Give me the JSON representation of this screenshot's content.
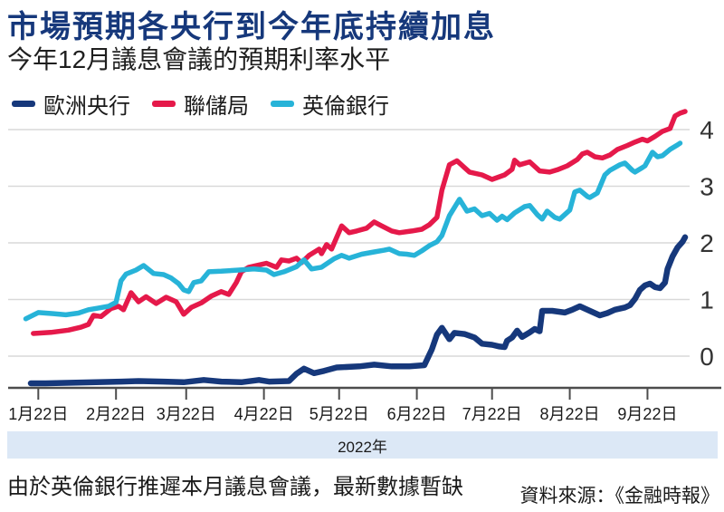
{
  "header": {
    "title": "市場預期各央行到今年底持續加息",
    "subtitle": "今年12月議息會議的預期利率水平"
  },
  "footer": {
    "note": "由於英倫銀行推遲本月議息會議，最新數據暫缺",
    "source": "資料來源：《金融時報》"
  },
  "chart_data": {
    "type": "line",
    "title": "市場預期各央行到今年底持續加息",
    "subtitle": "今年12月議息會議的預期利率水平",
    "grid": true,
    "legend_position": "top-left",
    "x_axis": {
      "unit": "day_of_year_2022",
      "tick_labels": [
        "1月22日",
        "2月22日",
        "3月22日",
        "4月22日",
        "5月22日",
        "6月22日",
        "7月22日",
        "8月22日",
        "9月22日"
      ],
      "tick_days": [
        22,
        53,
        81,
        112,
        142,
        173,
        203,
        234,
        265
      ],
      "band_label": "2022年"
    },
    "y_axis": {
      "side": "right",
      "ticks": [
        0,
        1,
        2,
        3,
        4
      ],
      "range": [
        -0.6,
        4.45
      ],
      "label": "%"
    },
    "series": [
      {
        "id": "ecb",
        "name": "歐洲央行",
        "color": "#16387b",
        "points": [
          [
            19,
            -0.48
          ],
          [
            25,
            -0.48
          ],
          [
            35,
            -0.47
          ],
          [
            45,
            -0.46
          ],
          [
            55,
            -0.45
          ],
          [
            62,
            -0.44
          ],
          [
            72,
            -0.45
          ],
          [
            80,
            -0.46
          ],
          [
            88,
            -0.42
          ],
          [
            95,
            -0.45
          ],
          [
            103,
            -0.46
          ],
          [
            110,
            -0.42
          ],
          [
            114,
            -0.45
          ],
          [
            122,
            -0.44
          ],
          [
            125,
            -0.31
          ],
          [
            128,
            -0.22
          ],
          [
            132,
            -0.3
          ],
          [
            136,
            -0.26
          ],
          [
            141,
            -0.2
          ],
          [
            150,
            -0.18
          ],
          [
            156,
            -0.15
          ],
          [
            163,
            -0.18
          ],
          [
            170,
            -0.18
          ],
          [
            176,
            -0.16
          ],
          [
            179,
            0.12
          ],
          [
            181,
            0.38
          ],
          [
            183,
            0.5
          ],
          [
            186,
            0.3
          ],
          [
            188,
            0.41
          ],
          [
            192,
            0.39
          ],
          [
            196,
            0.33
          ],
          [
            199,
            0.22
          ],
          [
            203,
            0.2
          ],
          [
            206,
            0.17
          ],
          [
            208,
            0.16
          ],
          [
            209,
            0.27
          ],
          [
            211,
            0.33
          ],
          [
            213,
            0.45
          ],
          [
            215,
            0.34
          ],
          [
            218,
            0.42
          ],
          [
            220,
            0.48
          ],
          [
            222,
            0.44
          ],
          [
            223,
            0.8
          ],
          [
            227,
            0.8
          ],
          [
            232,
            0.77
          ],
          [
            235,
            0.82
          ],
          [
            238,
            0.88
          ],
          [
            242,
            0.8
          ],
          [
            246,
            0.72
          ],
          [
            249,
            0.76
          ],
          [
            252,
            0.82
          ],
          [
            256,
            0.86
          ],
          [
            258,
            0.9
          ],
          [
            260,
            1.01
          ],
          [
            262,
            1.17
          ],
          [
            264,
            1.25
          ],
          [
            266,
            1.28
          ],
          [
            268,
            1.22
          ],
          [
            270,
            1.2
          ],
          [
            272,
            1.3
          ],
          [
            273,
            1.54
          ],
          [
            275,
            1.76
          ],
          [
            277,
            1.92
          ],
          [
            279,
            2.02
          ],
          [
            280,
            2.1
          ]
        ]
      },
      {
        "id": "fed",
        "name": "聯儲局",
        "color": "#e5194a",
        "points": [
          [
            20,
            0.4
          ],
          [
            27,
            0.42
          ],
          [
            34,
            0.46
          ],
          [
            39,
            0.51
          ],
          [
            42,
            0.56
          ],
          [
            44,
            0.72
          ],
          [
            47,
            0.7
          ],
          [
            51,
            0.84
          ],
          [
            54,
            0.88
          ],
          [
            56,
            0.82
          ],
          [
            59,
            1.12
          ],
          [
            62,
            0.96
          ],
          [
            65,
            1.05
          ],
          [
            69,
            0.93
          ],
          [
            73,
            1.04
          ],
          [
            77,
            0.96
          ],
          [
            80,
            0.74
          ],
          [
            83,
            0.86
          ],
          [
            87,
            0.94
          ],
          [
            91,
            1.06
          ],
          [
            95,
            1.14
          ],
          [
            98,
            1.09
          ],
          [
            101,
            1.3
          ],
          [
            103,
            1.49
          ],
          [
            106,
            1.57
          ],
          [
            110,
            1.61
          ],
          [
            113,
            1.64
          ],
          [
            117,
            1.57
          ],
          [
            119,
            1.7
          ],
          [
            122,
            1.68
          ],
          [
            125,
            1.73
          ],
          [
            127,
            1.65
          ],
          [
            130,
            1.78
          ],
          [
            134,
            1.89
          ],
          [
            135,
            1.81
          ],
          [
            137,
            1.97
          ],
          [
            139,
            1.89
          ],
          [
            143,
            2.3
          ],
          [
            146,
            2.18
          ],
          [
            149,
            2.21
          ],
          [
            153,
            2.26
          ],
          [
            156,
            2.37
          ],
          [
            159,
            2.3
          ],
          [
            163,
            2.21
          ],
          [
            166,
            2.18
          ],
          [
            171,
            2.21
          ],
          [
            175,
            2.24
          ],
          [
            178,
            2.32
          ],
          [
            181,
            2.45
          ],
          [
            183,
            2.93
          ],
          [
            186,
            3.38
          ],
          [
            189,
            3.45
          ],
          [
            192,
            3.33
          ],
          [
            194,
            3.25
          ],
          [
            199,
            3.2
          ],
          [
            203,
            3.12
          ],
          [
            208,
            3.2
          ],
          [
            211,
            3.3
          ],
          [
            212,
            3.46
          ],
          [
            214,
            3.38
          ],
          [
            218,
            3.43
          ],
          [
            222,
            3.27
          ],
          [
            226,
            3.25
          ],
          [
            229,
            3.29
          ],
          [
            233,
            3.36
          ],
          [
            237,
            3.47
          ],
          [
            239,
            3.57
          ],
          [
            241,
            3.6
          ],
          [
            244,
            3.52
          ],
          [
            247,
            3.5
          ],
          [
            250,
            3.55
          ],
          [
            253,
            3.65
          ],
          [
            257,
            3.72
          ],
          [
            260,
            3.78
          ],
          [
            263,
            3.83
          ],
          [
            265,
            3.8
          ],
          [
            268,
            3.88
          ],
          [
            271,
            3.97
          ],
          [
            274,
            4.02
          ],
          [
            276,
            4.24
          ],
          [
            278,
            4.29
          ],
          [
            280,
            4.32
          ]
        ]
      },
      {
        "id": "boe",
        "name": "英倫銀行",
        "color": "#27b3d8",
        "points": [
          [
            17,
            0.66
          ],
          [
            22,
            0.77
          ],
          [
            28,
            0.75
          ],
          [
            33,
            0.73
          ],
          [
            38,
            0.76
          ],
          [
            42,
            0.82
          ],
          [
            46,
            0.85
          ],
          [
            50,
            0.88
          ],
          [
            53,
            0.95
          ],
          [
            55,
            1.33
          ],
          [
            57,
            1.45
          ],
          [
            61,
            1.52
          ],
          [
            64,
            1.6
          ],
          [
            68,
            1.46
          ],
          [
            72,
            1.44
          ],
          [
            75,
            1.38
          ],
          [
            78,
            1.28
          ],
          [
            80,
            1.17
          ],
          [
            82,
            1.14
          ],
          [
            84,
            1.3
          ],
          [
            87,
            1.33
          ],
          [
            90,
            1.49
          ],
          [
            95,
            1.5
          ],
          [
            102,
            1.52
          ],
          [
            108,
            1.54
          ],
          [
            113,
            1.52
          ],
          [
            116,
            1.44
          ],
          [
            120,
            1.49
          ],
          [
            125,
            1.58
          ],
          [
            128,
            1.7
          ],
          [
            131,
            1.54
          ],
          [
            135,
            1.57
          ],
          [
            140,
            1.72
          ],
          [
            143,
            1.78
          ],
          [
            146,
            1.73
          ],
          [
            151,
            1.8
          ],
          [
            156,
            1.84
          ],
          [
            160,
            1.87
          ],
          [
            162,
            1.89
          ],
          [
            166,
            1.81
          ],
          [
            169,
            1.8
          ],
          [
            172,
            1.78
          ],
          [
            175,
            1.86
          ],
          [
            178,
            1.95
          ],
          [
            181,
            2.02
          ],
          [
            183,
            2.13
          ],
          [
            186,
            2.48
          ],
          [
            190,
            2.77
          ],
          [
            193,
            2.56
          ],
          [
            196,
            2.6
          ],
          [
            199,
            2.48
          ],
          [
            202,
            2.52
          ],
          [
            205,
            2.4
          ],
          [
            207,
            2.47
          ],
          [
            209,
            2.41
          ],
          [
            212,
            2.53
          ],
          [
            216,
            2.64
          ],
          [
            218,
            2.66
          ],
          [
            221,
            2.5
          ],
          [
            223,
            2.42
          ],
          [
            225,
            2.56
          ],
          [
            228,
            2.45
          ],
          [
            230,
            2.42
          ],
          [
            234,
            2.58
          ],
          [
            236,
            2.9
          ],
          [
            238,
            2.93
          ],
          [
            241,
            2.82
          ],
          [
            242,
            2.8
          ],
          [
            245,
            2.88
          ],
          [
            248,
            3.2
          ],
          [
            250,
            3.28
          ],
          [
            254,
            3.38
          ],
          [
            256,
            3.41
          ],
          [
            259,
            3.28
          ],
          [
            260,
            3.25
          ],
          [
            263,
            3.33
          ],
          [
            264,
            3.36
          ],
          [
            267,
            3.6
          ],
          [
            269,
            3.52
          ],
          [
            271,
            3.54
          ],
          [
            274,
            3.65
          ],
          [
            277,
            3.73
          ],
          [
            278,
            3.76
          ]
        ]
      }
    ]
  }
}
